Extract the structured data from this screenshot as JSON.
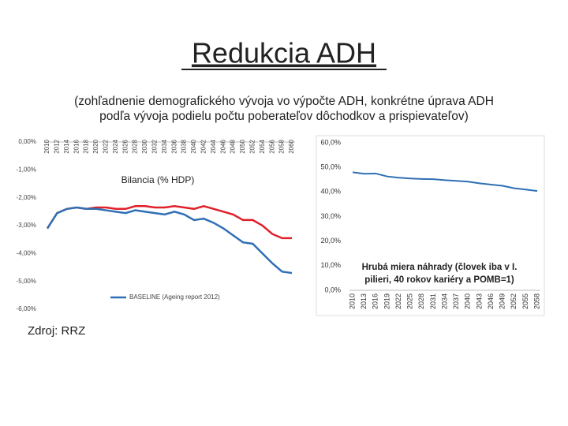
{
  "slide": {
    "title": "Redukcia ADH",
    "subtitle": [
      "(zohľadnenie demografického vývoja vo výpočte ADH, konkrétne úprava ADH",
      "podľa vývoja podielu počtu poberateľov dôchodkov a prispievateľov)"
    ],
    "source": "Zdroj: RRZ"
  },
  "chart_data": [
    {
      "type": "line",
      "title": [
        "Bilancia (% HDP)"
      ],
      "categories": [
        "2010",
        "2012",
        "2014",
        "2016",
        "2018",
        "2020",
        "2022",
        "2024",
        "2026",
        "2028",
        "2030",
        "2032",
        "2034",
        "2036",
        "2038",
        "2040",
        "2042",
        "2044",
        "2046",
        "2048",
        "2050",
        "2052",
        "2054",
        "2056",
        "2058",
        "2060"
      ],
      "series": [
        {
          "color": "#e0202a",
          "values": [
            -3.1,
            -2.55,
            -2.4,
            -2.35,
            -2.4,
            -2.35,
            -2.35,
            -2.4,
            -2.4,
            -2.3,
            -2.3,
            -2.35,
            -2.35,
            -2.3,
            -2.35,
            -2.4,
            -2.3,
            -2.4,
            -2.5,
            -2.6,
            -2.8,
            -2.8,
            -3.0,
            -3.3,
            -3.45,
            -3.45
          ]
        },
        {
          "name": "BASELINE (Ageing report 2012)",
          "color": "#2f6fb5",
          "values": [
            -3.1,
            -2.55,
            -2.4,
            -2.35,
            -2.4,
            -2.4,
            -2.45,
            -2.5,
            -2.55,
            -2.45,
            -2.5,
            -2.55,
            -2.6,
            -2.5,
            -2.6,
            -2.8,
            -2.75,
            -2.9,
            -3.1,
            -3.35,
            -3.6,
            -3.65,
            -4.0,
            -4.35,
            -4.65,
            -4.7
          ]
        }
      ],
      "ylim": [
        -6,
        0
      ],
      "yticks": [
        {
          "value": 0,
          "label": "0,00%"
        },
        {
          "value": -1,
          "label": "-1,00%"
        },
        {
          "value": -2,
          "label": "-2,00%"
        },
        {
          "value": -3,
          "label": "-3,00%"
        },
        {
          "value": -4,
          "label": "-4,00%"
        },
        {
          "value": -5,
          "label": "-5,00%"
        },
        {
          "value": -6,
          "label": "-6,00%"
        }
      ],
      "grid": false
    },
    {
      "type": "line",
      "title": [
        "Hrubá miera náhrady (človek iba v I.",
        "pilieri, 40 rokov kariéry a POMB=1)"
      ],
      "categories": [
        "2010",
        "2013",
        "2016",
        "2019",
        "2022",
        "2025",
        "2028",
        "2031",
        "2034",
        "2037",
        "2040",
        "2043",
        "2046",
        "2049",
        "2052",
        "2055",
        "2058"
      ],
      "series": [
        {
          "color": "#2f6fb5",
          "values": [
            48,
            47.4,
            47.5,
            46.3,
            45.8,
            45.5,
            45.3,
            45.2,
            44.8,
            44.5,
            44.2,
            43.5,
            43,
            42.5,
            41.5,
            41,
            40.4
          ]
        }
      ],
      "ylim": [
        0,
        60
      ],
      "yticks": [
        {
          "value": 0,
          "label": "0,0%"
        },
        {
          "value": 10,
          "label": "10,0%"
        },
        {
          "value": 20,
          "label": "20,0%"
        },
        {
          "value": 30,
          "label": "30,0%"
        },
        {
          "value": 40,
          "label": "40,0%"
        },
        {
          "value": 50,
          "label": "50,0%"
        },
        {
          "value": 60,
          "label": "60,0%"
        }
      ],
      "grid": false
    }
  ]
}
